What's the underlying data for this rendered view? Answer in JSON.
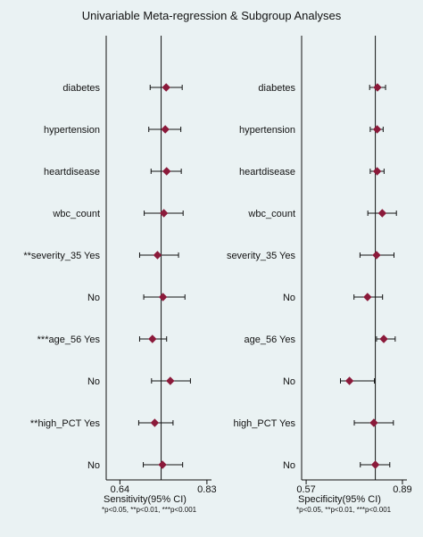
{
  "title": "Univariable Meta-regression & Subgroup Analyses",
  "chart_data": [
    {
      "type": "forest",
      "xlabel": "Sensitivity(95% CI)",
      "footnote": "*p<0.05, **p<0.01, ***p<0.001",
      "xlim": [
        0.61,
        0.84
      ],
      "ticks": [
        0.64,
        0.83
      ],
      "tick_labels": [
        "0.64",
        "0.83"
      ],
      "ref_line": 0.73,
      "rows": [
        {
          "label": "diabetes",
          "est": 0.741,
          "lo": 0.706,
          "hi": 0.776
        },
        {
          "label": "hypertension",
          "est": 0.739,
          "lo": 0.703,
          "hi": 0.773
        },
        {
          "label": "heartdisease",
          "est": 0.742,
          "lo": 0.708,
          "hi": 0.774
        },
        {
          "label": "wbc_count",
          "est": 0.736,
          "lo": 0.693,
          "hi": 0.778
        },
        {
          "label": "**severity_35 Yes",
          "est": 0.722,
          "lo": 0.683,
          "hi": 0.768
        },
        {
          "label": "No",
          "est": 0.734,
          "lo": 0.692,
          "hi": 0.782
        },
        {
          "label": "***age_56 Yes",
          "est": 0.711,
          "lo": 0.683,
          "hi": 0.742
        },
        {
          "label": "No",
          "est": 0.75,
          "lo": 0.709,
          "hi": 0.794
        },
        {
          "label": "**high_PCT Yes",
          "est": 0.716,
          "lo": 0.681,
          "hi": 0.756
        },
        {
          "label": "No",
          "est": 0.733,
          "lo": 0.691,
          "hi": 0.777
        }
      ]
    },
    {
      "type": "forest",
      "xlabel": "Specificity(95% CI)",
      "footnote": "*p<0.05, **p<0.01, ***p<0.001",
      "xlim": [
        0.555,
        0.905
      ],
      "ticks": [
        0.57,
        0.89
      ],
      "tick_labels": [
        "0.57",
        "0.89"
      ],
      "ref_line": 0.8,
      "rows": [
        {
          "label": "diabetes",
          "est": 0.807,
          "lo": 0.781,
          "hi": 0.834
        },
        {
          "label": "hypertension",
          "est": 0.806,
          "lo": 0.783,
          "hi": 0.826
        },
        {
          "label": "heartdisease",
          "est": 0.806,
          "lo": 0.783,
          "hi": 0.829
        },
        {
          "label": "wbc_count",
          "est": 0.823,
          "lo": 0.775,
          "hi": 0.87
        },
        {
          "label": "severity_35 Yes",
          "est": 0.804,
          "lo": 0.749,
          "hi": 0.862
        },
        {
          "label": "No",
          "est": 0.774,
          "lo": 0.729,
          "hi": 0.824
        },
        {
          "label": "age_56 Yes",
          "est": 0.828,
          "lo": 0.804,
          "hi": 0.866
        },
        {
          "label": "No",
          "est": 0.714,
          "lo": 0.684,
          "hi": 0.797
        },
        {
          "label": "high_PCT Yes",
          "est": 0.795,
          "lo": 0.73,
          "hi": 0.86
        },
        {
          "label": "No",
          "est": 0.8,
          "lo": 0.75,
          "hi": 0.848
        }
      ]
    }
  ],
  "colors": {
    "marker": "#8b1a3a",
    "line": "#111111",
    "background": "#eaf2f3"
  }
}
